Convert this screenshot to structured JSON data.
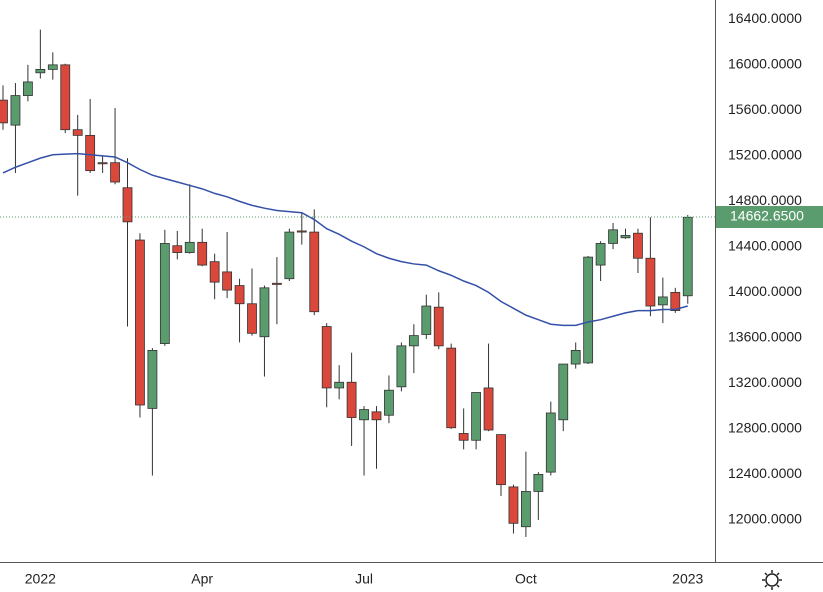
{
  "chart_data": {
    "type": "candlestick",
    "categories": [
      null,
      null,
      null,
      "2022",
      null,
      null,
      null,
      null,
      null,
      null,
      null,
      null,
      null,
      null,
      null,
      null,
      "Apr",
      null,
      null,
      null,
      null,
      null,
      null,
      null,
      null,
      null,
      null,
      null,
      null,
      "Jul",
      null,
      null,
      null,
      null,
      null,
      null,
      null,
      null,
      null,
      null,
      null,
      null,
      "Oct",
      null,
      null,
      null,
      null,
      null,
      null,
      null,
      null,
      null,
      null,
      null,
      null,
      "2023"
    ],
    "open": [
      15690,
      15470,
      15730,
      15930,
      15960,
      16000,
      15430,
      15380,
      15140,
      15140,
      14920,
      14460,
      12980,
      13550,
      14410,
      14350,
      14440,
      14270,
      14180,
      14060,
      13900,
      13610,
      14080,
      14120,
      14540,
      14530,
      13700,
      13160,
      13210,
      12880,
      12950,
      12920,
      13170,
      13530,
      13630,
      13870,
      13510,
      12760,
      12700,
      13160,
      12750,
      12290,
      11940,
      12250,
      12420,
      12880,
      13370,
      13380,
      14240,
      14430,
      14480,
      14520,
      14300,
      13890,
      14000,
      13970
    ],
    "high": [
      15820,
      15840,
      16000,
      16310,
      16110,
      16010,
      15560,
      15700,
      15200,
      15620,
      15180,
      14520,
      13510,
      14550,
      14540,
      14950,
      14560,
      14340,
      14530,
      14120,
      14210,
      14060,
      14310,
      14560,
      14700,
      14730,
      13730,
      13360,
      13470,
      13000,
      13000,
      13270,
      13560,
      13720,
      13980,
      14000,
      13550,
      12980,
      13120,
      13550,
      12750,
      12310,
      12600,
      12420,
      13040,
      13370,
      13560,
      14320,
      14450,
      14610,
      14560,
      14560,
      14660,
      14130,
      14040,
      14680
    ],
    "low": [
      15430,
      15050,
      15680,
      15880,
      15870,
      15400,
      14850,
      15050,
      15050,
      14950,
      13700,
      12900,
      12390,
      13530,
      14290,
      14340,
      14230,
      13940,
      13950,
      13560,
      13620,
      13260,
      13720,
      14100,
      14420,
      13800,
      12990,
      13060,
      12650,
      12390,
      12450,
      12850,
      13130,
      13290,
      13590,
      13500,
      12800,
      12620,
      12620,
      12780,
      12210,
      11880,
      11850,
      12000,
      12390,
      12780,
      13330,
      13370,
      14100,
      14380,
      14470,
      14170,
      13790,
      13730,
      13820,
      13900
    ],
    "close": [
      15490,
      15730,
      15850,
      15960,
      16000,
      15430,
      15380,
      15070,
      15130,
      14970,
      14620,
      13010,
      13490,
      14430,
      14350,
      14440,
      14240,
      14090,
      14020,
      13900,
      13640,
      14040,
      14070,
      14530,
      14530,
      13830,
      13160,
      13210,
      12900,
      12970,
      12880,
      13140,
      13530,
      13620,
      13880,
      13530,
      12810,
      12700,
      13120,
      12790,
      12310,
      11970,
      12250,
      12400,
      12940,
      13370,
      13490,
      14310,
      14430,
      14550,
      14500,
      14300,
      13880,
      13960,
      13840,
      14660
    ],
    "up_color": "#5b9c6e",
    "down_color": "#d9483b",
    "overlay": {
      "color": "#3550a8",
      "values": [
        15050,
        15100,
        15140,
        15180,
        15210,
        15215,
        15220,
        15210,
        15200,
        15190,
        15140,
        15080,
        15030,
        15000,
        14970,
        14940,
        14910,
        14870,
        14840,
        14800,
        14765,
        14740,
        14720,
        14710,
        14700,
        14640,
        14560,
        14510,
        14450,
        14400,
        14340,
        14300,
        14270,
        14250,
        14240,
        14190,
        14150,
        14100,
        14060,
        14000,
        13920,
        13860,
        13800,
        13760,
        13720,
        13710,
        13710,
        13740,
        13760,
        13790,
        13820,
        13840,
        13840,
        13850,
        13850,
        13880
      ]
    },
    "price": {
      "value": 14662.65,
      "label": "14662.6500"
    },
    "ylim": [
      11630,
      16570
    ],
    "yticks": [
      {
        "value": 12000,
        "label": "12000.0000"
      },
      {
        "value": 12400,
        "label": "12400.0000"
      },
      {
        "value": 12800,
        "label": "12800.0000"
      },
      {
        "value": 13200,
        "label": "13200.0000"
      },
      {
        "value": 13600,
        "label": "13600.0000"
      },
      {
        "value": 14000,
        "label": "14000.0000"
      },
      {
        "value": 14400,
        "label": "14400.0000"
      },
      {
        "value": 14800,
        "label": "14800.0000"
      },
      {
        "value": 15200,
        "label": "15200.0000"
      },
      {
        "value": 15600,
        "label": "15600.0000"
      },
      {
        "value": 16000,
        "label": "16000.0000"
      },
      {
        "value": 16400,
        "label": "16400.0000"
      }
    ],
    "grid": false
  }
}
